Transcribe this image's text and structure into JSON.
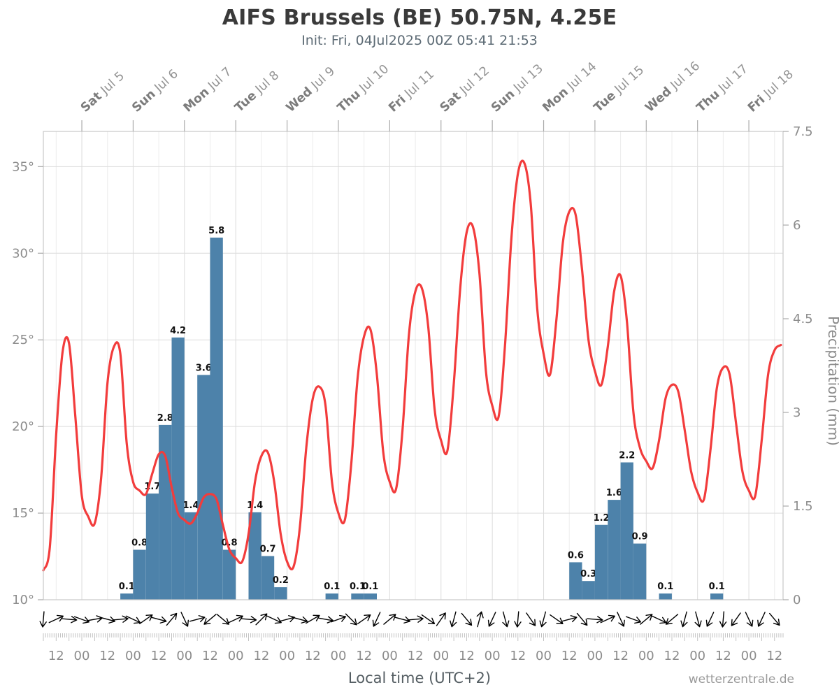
{
  "header": {
    "title": "AIFS Brussels (BE) 50.75N, 4.25E",
    "subtitle": "Init: Fri, 04Jul2025 00Z 05:41 21:53"
  },
  "footer": {
    "xlabel": "Local time (UTC+2)",
    "watermark": "wetterzentrale.de"
  },
  "colors": {
    "temperature_line": "#f23c3c",
    "precip_bar": "#4d82aa",
    "grid_major": "#dcdcdc",
    "grid_minor": "#ececec",
    "border": "#c9c9c9",
    "tick": "#aaaaaa",
    "axis_text": "#8c8c8c",
    "day_label": "#7c7c7c",
    "day_date": "#949494",
    "bar_label": "#111111",
    "wind_arrow": "#000000"
  },
  "chart_data": {
    "type": "line+bar",
    "title": "AIFS Brussels (BE) 50.75N, 4.25E",
    "subtitle": "Init: Fri, 04Jul2025 00Z 05:41 21:53",
    "x_axis": {
      "label": "Local time (UTC+2)",
      "time_reference": "hours since Jul 4 00:00 local",
      "range_hours": [
        6,
        352
      ],
      "day_labels": [
        {
          "day": "Sat",
          "date": "Jul 5",
          "t": 24
        },
        {
          "day": "Sun",
          "date": "Jul 6",
          "t": 48
        },
        {
          "day": "Mon",
          "date": "Jul 7",
          "t": 72
        },
        {
          "day": "Tue",
          "date": "Jul 8",
          "t": 96
        },
        {
          "day": "Wed",
          "date": "Jul 9",
          "t": 120
        },
        {
          "day": "Thu",
          "date": "Jul 10",
          "t": 144
        },
        {
          "day": "Fri",
          "date": "Jul 11",
          "t": 168
        },
        {
          "day": "Sat",
          "date": "Jul 12",
          "t": 192
        },
        {
          "day": "Sun",
          "date": "Jul 13",
          "t": 216
        },
        {
          "day": "Mon",
          "date": "Jul 14",
          "t": 240
        },
        {
          "day": "Tue",
          "date": "Jul 15",
          "t": 264
        },
        {
          "day": "Wed",
          "date": "Jul 16",
          "t": 288
        },
        {
          "day": "Thu",
          "date": "Jul 17",
          "t": 312
        },
        {
          "day": "Fri",
          "date": "Jul 18",
          "t": 336
        }
      ],
      "time_ticks": [
        {
          "t": 12,
          "label": "12"
        },
        {
          "t": 24,
          "label": "00"
        },
        {
          "t": 36,
          "label": "12"
        },
        {
          "t": 48,
          "label": "00"
        },
        {
          "t": 60,
          "label": "12"
        },
        {
          "t": 72,
          "label": "00"
        },
        {
          "t": 84,
          "label": "12"
        },
        {
          "t": 96,
          "label": "00"
        },
        {
          "t": 108,
          "label": "12"
        },
        {
          "t": 120,
          "label": "00"
        },
        {
          "t": 132,
          "label": "12"
        },
        {
          "t": 144,
          "label": "00"
        },
        {
          "t": 156,
          "label": "12"
        },
        {
          "t": 168,
          "label": "00"
        },
        {
          "t": 180,
          "label": "12"
        },
        {
          "t": 192,
          "label": "00"
        },
        {
          "t": 204,
          "label": "12"
        },
        {
          "t": 216,
          "label": "00"
        },
        {
          "t": 228,
          "label": "12"
        },
        {
          "t": 240,
          "label": "00"
        },
        {
          "t": 252,
          "label": "12"
        },
        {
          "t": 264,
          "label": "00"
        },
        {
          "t": 276,
          "label": "12"
        },
        {
          "t": 288,
          "label": "00"
        },
        {
          "t": 300,
          "label": "12"
        },
        {
          "t": 312,
          "label": "00"
        },
        {
          "t": 324,
          "label": "12"
        },
        {
          "t": 336,
          "label": "00"
        },
        {
          "t": 348,
          "label": "12"
        }
      ]
    },
    "y_left": {
      "unit": "°C",
      "range": [
        10,
        37
      ],
      "ticks": [
        {
          "v": 10,
          "label": "10°"
        },
        {
          "v": 15,
          "label": "15°"
        },
        {
          "v": 20,
          "label": "20°"
        },
        {
          "v": 25,
          "label": "25°"
        },
        {
          "v": 30,
          "label": "30°"
        },
        {
          "v": 35,
          "label": "35°"
        }
      ]
    },
    "y_right": {
      "label": "Precipitation (mm)",
      "range": [
        0,
        7.5
      ],
      "ticks": [
        {
          "v": 0,
          "label": "0"
        },
        {
          "v": 1.5,
          "label": "1.5"
        },
        {
          "v": 3,
          "label": "3"
        },
        {
          "v": 4.5,
          "label": "4.5"
        },
        {
          "v": 6,
          "label": "6"
        },
        {
          "v": 7.5,
          "label": "7.5"
        }
      ]
    },
    "series": {
      "temperature": {
        "name": "2m temperature",
        "t_start": 6,
        "t_step": 3,
        "values": [
          11.7,
          13.0,
          19.5,
          24.3,
          24.8,
          20.5,
          16.0,
          14.8,
          14.4,
          17.0,
          22.5,
          24.6,
          24.2,
          19.0,
          16.8,
          16.3,
          16.1,
          17.3,
          18.4,
          18.3,
          16.5,
          15.0,
          14.6,
          14.4,
          15.0,
          15.9,
          16.1,
          15.8,
          14.3,
          12.9,
          12.4,
          12.2,
          13.8,
          16.8,
          18.3,
          18.5,
          16.8,
          13.8,
          12.2,
          11.9,
          14.2,
          18.8,
          21.6,
          22.3,
          21.2,
          16.8,
          15.0,
          14.6,
          17.8,
          22.8,
          25.2,
          25.6,
          23.0,
          18.5,
          16.8,
          16.4,
          19.8,
          25.3,
          27.8,
          28.0,
          25.8,
          21.0,
          19.2,
          18.6,
          22.5,
          28.0,
          31.2,
          31.5,
          28.8,
          23.2,
          21.2,
          20.6,
          24.8,
          31.0,
          34.6,
          35.2,
          32.8,
          26.8,
          24.2,
          23.0,
          26.2,
          30.6,
          32.4,
          32.2,
          29.0,
          25.0,
          23.2,
          22.4,
          24.6,
          27.8,
          28.7,
          26.0,
          20.8,
          18.8,
          18.0,
          17.6,
          19.2,
          21.6,
          22.4,
          22.0,
          19.8,
          17.4,
          16.2,
          15.8,
          18.6,
          22.2,
          23.4,
          23.0,
          20.2,
          17.4,
          16.3,
          16.0,
          19.2,
          23.0,
          24.4,
          24.7
        ]
      },
      "precipitation": {
        "name": "6h precipitation",
        "unit": "mm",
        "slot_hours": 6,
        "bars": [
          {
            "t": 42,
            "v": 0.1
          },
          {
            "t": 48,
            "v": 0.8
          },
          {
            "t": 54,
            "v": 1.7
          },
          {
            "t": 60,
            "v": 2.8
          },
          {
            "t": 66,
            "v": 4.2
          },
          {
            "t": 72,
            "v": 1.4
          },
          {
            "t": 78,
            "v": 3.6
          },
          {
            "t": 84,
            "v": 5.8
          },
          {
            "t": 90,
            "v": 0.8
          },
          {
            "t": 102,
            "v": 1.4
          },
          {
            "t": 108,
            "v": 0.7
          },
          {
            "t": 114,
            "v": 0.2
          },
          {
            "t": 138,
            "v": 0.1
          },
          {
            "t": 150,
            "v": 0.1
          },
          {
            "t": 156,
            "v": 0.1
          },
          {
            "t": 252,
            "v": 0.6
          },
          {
            "t": 258,
            "v": 0.3
          },
          {
            "t": 264,
            "v": 1.2
          },
          {
            "t": 270,
            "v": 1.6
          },
          {
            "t": 276,
            "v": 2.2
          },
          {
            "t": 282,
            "v": 0.9
          },
          {
            "t": 294,
            "v": 0.1
          },
          {
            "t": 318,
            "v": 0.1
          }
        ]
      },
      "wind": {
        "name": "wind direction arrows",
        "t_start": 6,
        "t_step": 6,
        "dir_deg": [
          95,
          -25,
          5,
          20,
          -10,
          15,
          -5,
          25,
          -35,
          15,
          -50,
          65,
          -15,
          140,
          40,
          -25,
          5,
          -45,
          25,
          -15,
          15,
          -30,
          10,
          -20,
          45,
          -35,
          115,
          -40,
          15,
          -5,
          35,
          -55,
          105,
          50,
          -75,
          115,
          75,
          95,
          55,
          105,
          35,
          -15,
          50,
          5,
          -25,
          65,
          20,
          -40,
          25,
          140,
          105,
          75,
          115,
          95,
          125,
          65,
          115,
          50
        ]
      }
    }
  }
}
